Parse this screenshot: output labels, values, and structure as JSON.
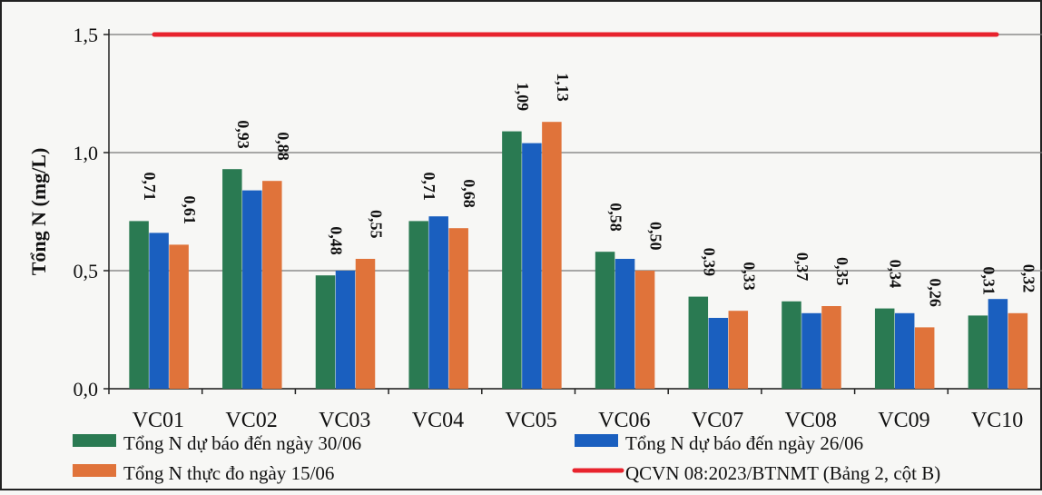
{
  "chart_data": {
    "type": "bar",
    "categories": [
      "VC01",
      "VC02",
      "VC03",
      "VC04",
      "VC05",
      "VC06",
      "VC07",
      "VC08",
      "VC09",
      "VC10"
    ],
    "series": [
      {
        "name": "Tổng N dự báo đến ngày 30/06",
        "color": "#2a7a52",
        "values": [
          0.71,
          0.93,
          0.48,
          0.71,
          1.09,
          0.58,
          0.39,
          0.37,
          0.34,
          0.31
        ],
        "labels": [
          "0,71",
          "0,93",
          "0,48",
          "0,71",
          "1,09",
          "0,58",
          "0,39",
          "0,37",
          "0,34",
          "0,31"
        ]
      },
      {
        "name": "Tổng N dự báo đến ngày 26/06",
        "color": "#1a5fbf",
        "values": [
          0.66,
          0.84,
          0.5,
          0.73,
          1.04,
          0.55,
          0.3,
          0.32,
          0.32,
          0.38
        ],
        "labels": []
      },
      {
        "name": "Tổng N thực đo ngày 15/06",
        "color": "#e0733a",
        "values": [
          0.61,
          0.88,
          0.55,
          0.68,
          1.13,
          0.5,
          0.33,
          0.35,
          0.26,
          0.32
        ],
        "labels": [
          "0,61",
          "0,88",
          "0,55",
          "0,68",
          "1,13",
          "0,50",
          "0,33",
          "0,35",
          "0,26",
          "0,32"
        ]
      }
    ],
    "reference_line": {
      "name": "QCVN  08:2023/BTNMT   (Bảng 2,  cột B)",
      "value": 1.5,
      "color": "#e8232d"
    },
    "ylabel": "Tổng N (mg/L)",
    "ylim": [
      0,
      1.5
    ],
    "yticks": [
      0,
      0.5,
      1.0,
      1.5
    ],
    "ytick_labels": [
      "0,0",
      "0,5",
      "1,0",
      "1,5"
    ],
    "grid": true,
    "legend_position": "bottom"
  }
}
